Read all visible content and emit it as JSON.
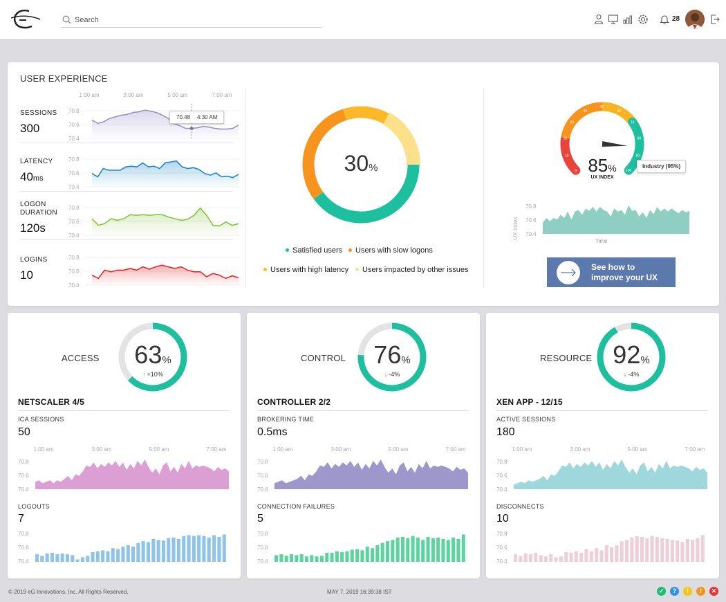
{
  "topbar": {
    "search_placeholder": "Search",
    "notification_count": "28",
    "icons": [
      "users-icon",
      "monitor-icon",
      "chart-icon",
      "gear-icon",
      "bell-icon",
      "logout-icon"
    ]
  },
  "ux": {
    "title": "USER EXPERIENCE",
    "time_labels": [
      "1:00 am",
      "3:00 am",
      "5:00 am",
      "7:00 am"
    ],
    "y_ticks": [
      "70.8",
      "70.6",
      "70.4"
    ],
    "tooltip": {
      "value": "70.48",
      "time": "4:30 AM"
    },
    "metrics": [
      {
        "label": "SESSIONS",
        "value": "300",
        "unit": "",
        "color": "#9b8fc8",
        "series": [
          0.55,
          0.45,
          0.5,
          0.6,
          0.65,
          0.7,
          0.72,
          0.78,
          0.8,
          0.85,
          0.82,
          0.78,
          0.7,
          0.6,
          0.45,
          0.38,
          0.3,
          0.3,
          0.32,
          0.36,
          0.34,
          0.3,
          0.28,
          0.28,
          0.3,
          0.4
        ]
      },
      {
        "label": "LATENCY",
        "value": "40",
        "unit": "ms",
        "color": "#1e88c8",
        "series": [
          0.4,
          0.3,
          0.55,
          0.5,
          0.5,
          0.5,
          0.6,
          0.62,
          0.6,
          0.72,
          0.6,
          0.62,
          0.55,
          0.72,
          0.75,
          0.78,
          0.6,
          0.55,
          0.58,
          0.52,
          0.4,
          0.35,
          0.42,
          0.3,
          0.32,
          0.28,
          0.38
        ]
      },
      {
        "label": "LOGON\nDURATION",
        "value": "120s",
        "unit": "",
        "color": "#86c440",
        "series": [
          0.5,
          0.3,
          0.35,
          0.5,
          0.45,
          0.5,
          0.62,
          0.6,
          0.62,
          0.6,
          0.62,
          0.62,
          0.55,
          0.5,
          0.45,
          0.48,
          0.6,
          0.82,
          0.6,
          0.3,
          0.28,
          0.4,
          0.3,
          0.35
        ]
      },
      {
        "label": "LOGINS",
        "value": "10",
        "unit": "",
        "color": "#e02a2a",
        "series": [
          0.3,
          0.2,
          0.45,
          0.4,
          0.45,
          0.45,
          0.5,
          0.45,
          0.55,
          0.48,
          0.55,
          0.6,
          0.55,
          0.5,
          0.55,
          0.45,
          0.4,
          0.4,
          0.25,
          0.35,
          0.3,
          0.2,
          0.28,
          0.22
        ]
      }
    ],
    "donut": {
      "percent": "30",
      "pct_sign": "%",
      "segments": [
        {
          "label": "Satisfied users",
          "value": 40,
          "color": "#1dbf9e"
        },
        {
          "label": "Users with slow logons",
          "value": 30,
          "color": "#f7941d"
        },
        {
          "label": "Users with high latency",
          "value": 13,
          "color": "#fbb829"
        },
        {
          "label": "Users impacted by other issues",
          "value": 17,
          "color": "#fde08a"
        }
      ]
    },
    "gauge": {
      "value": "85",
      "pct_sign": "%",
      "caption": "UX INDEX",
      "industry_label": "Industry (95%)",
      "ticks": [
        "0",
        "10",
        "20",
        "30",
        "40",
        "50",
        "60",
        "70",
        "80",
        "90",
        "100"
      ],
      "level": 0.85
    },
    "ux_chart": {
      "y_ticks": [
        "70.8",
        "70.6",
        "70.4"
      ],
      "ylabel": "UX Index",
      "xlabel": "Time",
      "color": "#8fcfc1",
      "series": [
        0.35,
        0.5,
        0.4,
        0.5,
        0.45,
        0.6,
        0.5,
        0.7,
        0.45,
        0.7,
        0.75,
        0.6,
        0.8,
        0.72,
        0.85,
        0.7,
        0.85,
        0.75,
        0.7,
        0.55,
        0.8,
        0.7,
        0.75,
        0.6,
        0.9,
        0.72,
        0.75,
        0.55,
        0.68,
        0.5,
        0.75,
        0.62,
        0.85,
        0.7,
        0.8,
        0.7,
        0.8,
        0.72,
        0.65,
        0.75,
        0.68,
        0.72
      ]
    },
    "cta": {
      "line1": "See how to",
      "line2": "improve your UX"
    }
  },
  "sections": [
    {
      "label": "ACCESS",
      "percent": "63",
      "delta": "+10%",
      "delta_dir": "up",
      "level": 0.63,
      "subtitle": "NETSCALER 4/5",
      "m1": {
        "label": "ICA SESSIONS",
        "value": "50"
      },
      "m2": {
        "label": "LOGOUTS",
        "value": "7"
      },
      "area_color": "#dc9fd3",
      "bar_color": "#8fc4e8",
      "area": [
        0.25,
        0.3,
        0.2,
        0.25,
        0.3,
        0.2,
        0.3,
        0.25,
        0.35,
        0.45,
        0.3,
        0.5,
        0.45,
        0.6,
        0.8,
        0.75,
        0.9,
        0.7,
        0.85,
        0.75,
        0.9,
        0.8,
        0.95,
        0.75,
        0.9,
        0.65,
        0.85,
        0.7,
        0.95,
        0.8,
        1.0,
        0.75,
        0.55,
        0.7,
        0.5,
        0.8,
        0.9,
        0.6,
        0.75,
        0.55,
        0.85,
        0.7,
        0.95,
        0.7,
        0.8,
        0.75,
        0.8,
        0.75,
        0.7,
        0.6,
        0.75,
        0.65,
        0.7,
        0.6
      ],
      "bars": [
        0.25,
        0.2,
        0.28,
        0.3,
        0.25,
        0.28,
        0.25,
        0.22,
        0.08,
        0.15,
        0.2,
        0.32,
        0.35,
        0.38,
        0.35,
        0.45,
        0.42,
        0.5,
        0.55,
        0.5,
        0.62,
        0.68,
        0.65,
        0.75,
        0.72,
        0.7,
        0.78,
        0.8,
        0.75,
        0.85,
        0.88,
        0.85,
        0.88,
        0.85,
        0.8,
        0.88,
        0.82,
        0.9
      ]
    },
    {
      "label": "CONTROL",
      "percent": "76",
      "delta": "-4%",
      "delta_dir": "down",
      "level": 0.76,
      "subtitle": "CONTROLLER 2/2",
      "m1": {
        "label": "BROKERING TIME",
        "value": "0.5ms"
      },
      "m2": {
        "label": "CONNECTION FAILURES",
        "value": "5"
      },
      "area_color": "#9d97cc",
      "bar_color": "#5dd3a0",
      "area": [
        0.2,
        0.25,
        0.3,
        0.2,
        0.25,
        0.3,
        0.35,
        0.45,
        0.3,
        0.5,
        0.45,
        0.6,
        0.8,
        0.75,
        0.9,
        0.7,
        0.85,
        0.75,
        0.9,
        0.8,
        0.95,
        0.75,
        0.9,
        0.65,
        0.85,
        0.7,
        0.95,
        0.8,
        1.0,
        0.75,
        0.55,
        0.7,
        0.5,
        0.8,
        0.9,
        0.6,
        0.75,
        0.55,
        0.85,
        0.7,
        0.95,
        0.7,
        0.8,
        0.75,
        0.8,
        0.75,
        0.7,
        0.6,
        0.75,
        0.65,
        0.7,
        0.55
      ],
      "bars": [
        0.22,
        0.25,
        0.2,
        0.25,
        0.22,
        0.25,
        0.18,
        0.22,
        0.18,
        0.2,
        0.3,
        0.3,
        0.35,
        0.32,
        0.35,
        0.4,
        0.42,
        0.38,
        0.5,
        0.45,
        0.55,
        0.62,
        0.68,
        0.72,
        0.8,
        0.82,
        0.78,
        0.85,
        0.8,
        0.72,
        0.82,
        0.78,
        0.8,
        0.75,
        0.72,
        0.8,
        0.75,
        0.9
      ]
    },
    {
      "label": "RESOURCE",
      "percent": "92",
      "delta": "-4%",
      "delta_dir": "down",
      "level": 0.92,
      "subtitle": "XEN APP - 12/15",
      "m1": {
        "label": "ACTIVE SESSIONS",
        "value": "180"
      },
      "m2": {
        "label": "DISCONNECTS",
        "value": "10"
      },
      "area_color": "#9fd8dc",
      "bar_color": "#edcfd9",
      "area": [
        0.15,
        0.2,
        0.25,
        0.2,
        0.3,
        0.25,
        0.3,
        0.35,
        0.45,
        0.3,
        0.5,
        0.45,
        0.6,
        0.8,
        0.75,
        0.9,
        0.7,
        0.85,
        0.75,
        0.9,
        0.8,
        0.95,
        0.75,
        0.9,
        0.65,
        0.85,
        0.7,
        0.95,
        0.8,
        1.0,
        0.75,
        0.55,
        0.7,
        0.5,
        0.8,
        0.9,
        0.6,
        0.75,
        0.55,
        0.85,
        0.7,
        0.95,
        0.7,
        0.8,
        0.75,
        0.8,
        0.75,
        0.7,
        0.6,
        0.75,
        0.65,
        0.7,
        0.55
      ],
      "bars": [
        0.25,
        0.2,
        0.28,
        0.25,
        0.3,
        0.22,
        0.18,
        0.25,
        0.15,
        0.18,
        0.32,
        0.3,
        0.35,
        0.3,
        0.42,
        0.35,
        0.45,
        0.38,
        0.55,
        0.48,
        0.55,
        0.68,
        0.72,
        0.8,
        0.85,
        0.82,
        0.78,
        0.85,
        0.82,
        0.78,
        0.75,
        0.72,
        0.7,
        0.65,
        0.75,
        0.72,
        0.78,
        0.88
      ]
    }
  ],
  "sec_time_labels": [
    "1:00 am",
    "3:00 am",
    "5:00 am",
    "7:00 am"
  ],
  "sec_y_ticks": [
    "70.8",
    "70.6",
    "70.4"
  ],
  "footer": {
    "copyright": "© 2019  eG Innovations, Inc. All Rights Reserved.",
    "datetime": "MAY 7, 2019 16:39:38 IST",
    "status_icons": [
      {
        "name": "ok-status-icon",
        "glyph": "✓",
        "color": "#1dbf73"
      },
      {
        "name": "help-status-icon",
        "glyph": "?",
        "color": "#2e93e8"
      },
      {
        "name": "warning-status-icon",
        "glyph": "!",
        "color": "#f5c518"
      },
      {
        "name": "minor-status-icon",
        "glyph": "!",
        "color": "#f7941d"
      },
      {
        "name": "critical-status-icon",
        "glyph": "✕",
        "color": "#e8332e"
      }
    ]
  }
}
